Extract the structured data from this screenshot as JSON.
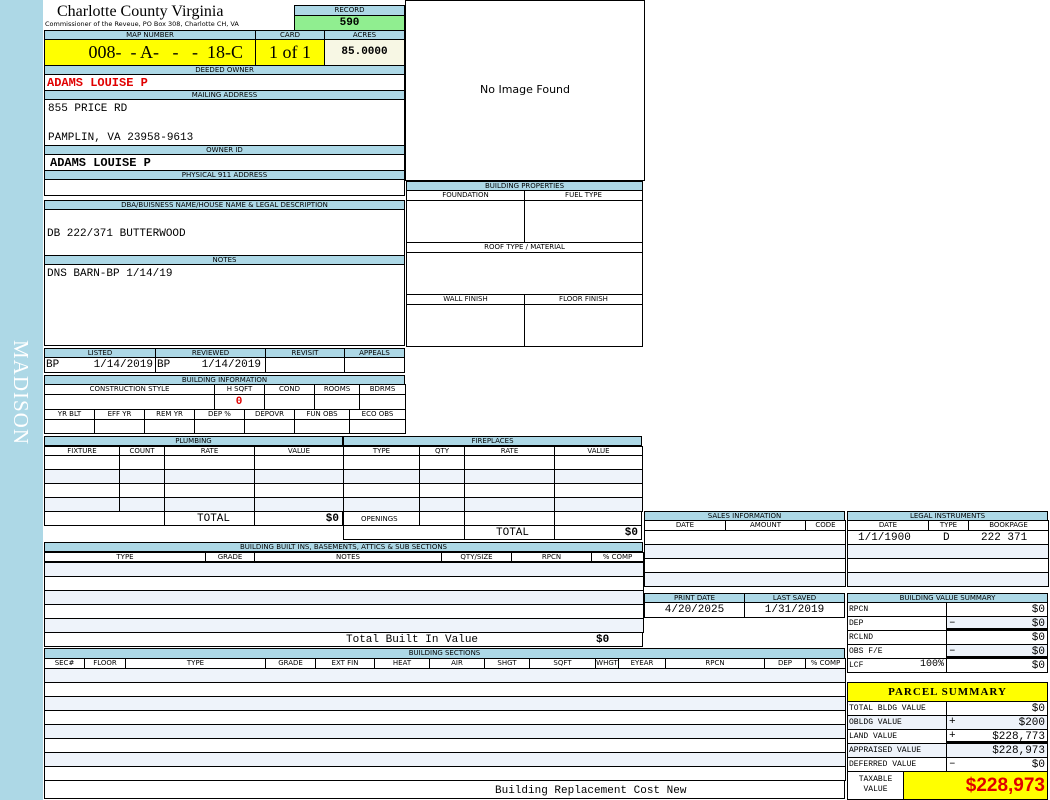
{
  "sidebar": {
    "district": "MADISON"
  },
  "header": {
    "county": "Charlotte County Virginia",
    "subtitle": "Commissioner of the Reveue, PO Box 308, Charlotte CH, VA",
    "record_label": "RECORD",
    "record": "590"
  },
  "parcel": {
    "map_number_label": "MAP NUMBER",
    "map_number": "008-  - A-   -   -  18-C",
    "card_label": "CARD",
    "card": "1 of 1",
    "acres_label": "ACRES",
    "acres": "85.0000"
  },
  "owner": {
    "deeded_label": "DEEDED OWNER",
    "deeded": "ADAMS LOUISE P",
    "mailing_label": "MAILING ADDRESS",
    "mailing_line1": "855 PRICE RD",
    "mailing_line2": "PAMPLIN, VA 23958-9613",
    "owner_id_label": "OWNER ID",
    "owner_id": "ADAMS LOUISE P",
    "physical_label": "PHYSICAL 911 ADDRESS"
  },
  "image": {
    "placeholder": "No Image Found"
  },
  "building_properties": {
    "title": "BUILDING PROPERTIES",
    "foundation": "FOUNDATION",
    "fuel_type": "FUEL TYPE",
    "roof": "ROOF TYPE / MATERIAL",
    "wall_finish": "WALL FINISH",
    "floor_finish": "FLOOR FINISH"
  },
  "description": {
    "label": "DBA/BUISNESS NAME/HOUSE NAME & LEGAL DESCRIPTION",
    "value": "DB 222/371 BUTTERWOOD"
  },
  "notes": {
    "label": "NOTES",
    "value": "DNS BARN-BP 1/14/19"
  },
  "review": {
    "listed_label": "LISTED",
    "listed_by": "BP",
    "listed_date": "1/14/2019",
    "reviewed_label": "REVIEWED",
    "reviewed_by": "BP",
    "reviewed_date": "1/14/2019",
    "revisit_label": "REVISIT",
    "appeals_label": "APPEALS"
  },
  "building_info": {
    "title": "BUILDING INFORMATION",
    "construction_style": "CONSTRUCTION STYLE",
    "hsqft": "H SQFT",
    "hsqft_value": "0",
    "cond": "COND",
    "rooms": "ROOMS",
    "bdrms": "BDRMS",
    "yr_blt": "YR BLT",
    "eff_yr": "EFF YR",
    "rem_yr": "REM YR",
    "dep_pct": "DEP %",
    "depovr": "DEPOVR",
    "fun_obs": "FUN OBS",
    "eco_obs": "ECO OBS"
  },
  "plumbing": {
    "title": "PLUMBING",
    "columns": [
      "FIXTURE",
      "COUNT",
      "RATE",
      "VALUE"
    ],
    "total_label": "TOTAL",
    "total": "$0"
  },
  "fireplaces": {
    "title": "FIREPLACES",
    "columns": [
      "TYPE",
      "QTY",
      "RATE",
      "VALUE"
    ],
    "openings_label": "OPENINGS",
    "total_label": "TOTAL",
    "total": "$0"
  },
  "built_ins": {
    "title": "BUILDING BUILT INS, BASEMENTS, ATTICS & SUB SECTIONS",
    "columns": [
      "TYPE",
      "GRADE",
      "NOTES",
      "QTY/SIZE",
      "RPCN",
      "% COMP"
    ],
    "total_label": "Total Built In Value",
    "total": "$0"
  },
  "sections": {
    "title": "BUILDING SECTIONS",
    "columns": [
      "SEC#",
      "FLOOR",
      "TYPE",
      "GRADE",
      "EXT FIN",
      "HEAT",
      "AIR",
      "SHGT",
      "SQFT",
      "WHGT",
      "EYEAR",
      "RPCN",
      "DEP",
      "% COMP"
    ],
    "footer": "Building Replacement Cost New"
  },
  "sales": {
    "title": "SALES INFORMATION",
    "columns": [
      "DATE",
      "AMOUNT",
      "CODE"
    ]
  },
  "legal": {
    "title": "LEGAL INSTRUMENTS",
    "columns": [
      "DATE",
      "TYPE",
      "BOOKPAGE"
    ],
    "rows": [
      {
        "date": "1/1/1900",
        "type": "D",
        "bookpage": "222 371"
      }
    ]
  },
  "dates": {
    "print_label": "PRINT DATE",
    "print": "4/20/2025",
    "saved_label": "LAST SAVED",
    "saved": "1/31/2019"
  },
  "value_summary": {
    "title": "BUILDING VALUE SUMMARY",
    "rows": [
      {
        "label": "RPCN",
        "sign": "",
        "value": "$0"
      },
      {
        "label": "DEP",
        "sign": "–",
        "value": "$0"
      },
      {
        "label": "RCLND",
        "sign": "",
        "value": "$0"
      },
      {
        "label": "OBS F/E",
        "sign": "–",
        "value": "$0"
      },
      {
        "label": "LCF",
        "pct": "100%",
        "sign": "",
        "value": "$0"
      }
    ]
  },
  "parcel_summary": {
    "title": "PARCEL SUMMARY",
    "rows": [
      {
        "label": "TOTAL BLDG VALUE",
        "sign": "",
        "value": "$0"
      },
      {
        "label": "OBLDG VALUE",
        "sign": "+",
        "value": "$200"
      },
      {
        "label": "LAND VALUE",
        "sign": "+",
        "value": "$228,773"
      },
      {
        "label": "APPRAISED VALUE",
        "sign": "",
        "value": "$228,973"
      },
      {
        "label": "DEFERRED VALUE",
        "sign": "–",
        "value": "$0"
      }
    ],
    "taxable_label": "TAXABLE VALUE",
    "taxable": "$228,973"
  },
  "colors": {
    "header": "#add8e6",
    "highlight": "#ffff00",
    "record": "#90ee90",
    "alert": "#e00000"
  }
}
